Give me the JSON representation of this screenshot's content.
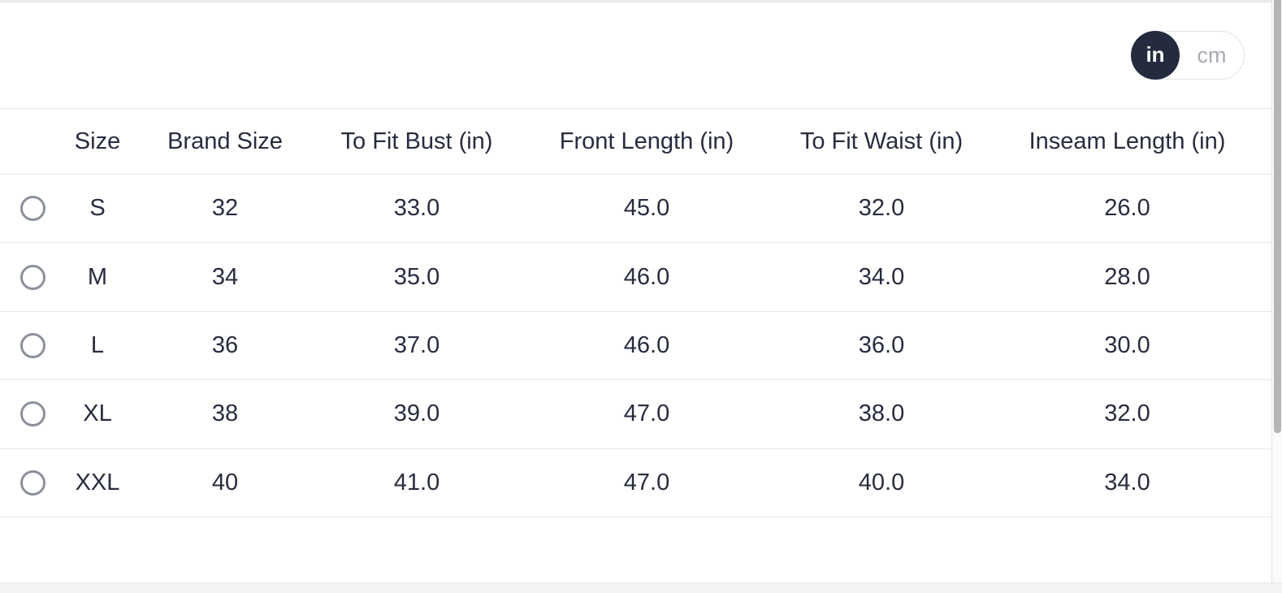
{
  "unit_toggle": {
    "options": [
      {
        "label": "in",
        "selected": true
      },
      {
        "label": "cm",
        "selected": false
      }
    ]
  },
  "table": {
    "columns": [
      "Size",
      "Brand Size",
      "To Fit Bust (in)",
      "Front Length (in)",
      "To Fit Waist (in)",
      "Inseam Length (in)"
    ],
    "rows": [
      {
        "size": "S",
        "brand_size": "32",
        "bust": "33.0",
        "front_length": "45.0",
        "waist": "32.0",
        "inseam": "26.0",
        "selected": false
      },
      {
        "size": "M",
        "brand_size": "34",
        "bust": "35.0",
        "front_length": "46.0",
        "waist": "34.0",
        "inseam": "28.0",
        "selected": false
      },
      {
        "size": "L",
        "brand_size": "36",
        "bust": "37.0",
        "front_length": "46.0",
        "waist": "36.0",
        "inseam": "30.0",
        "selected": false
      },
      {
        "size": "XL",
        "brand_size": "38",
        "bust": "39.0",
        "front_length": "47.0",
        "waist": "38.0",
        "inseam": "32.0",
        "selected": false
      },
      {
        "size": "XXL",
        "brand_size": "40",
        "bust": "41.0",
        "front_length": "47.0",
        "waist": "40.0",
        "inseam": "34.0",
        "selected": false
      }
    ]
  },
  "colors": {
    "toggle_selected_bg": "#242b3e",
    "toggle_unselected_text": "#a8abb3",
    "text": "#282c3f",
    "row_border": "#e9e9e9",
    "radio_ring": "#8b909b",
    "scrollbar_thumb": "#b5b5b5"
  }
}
